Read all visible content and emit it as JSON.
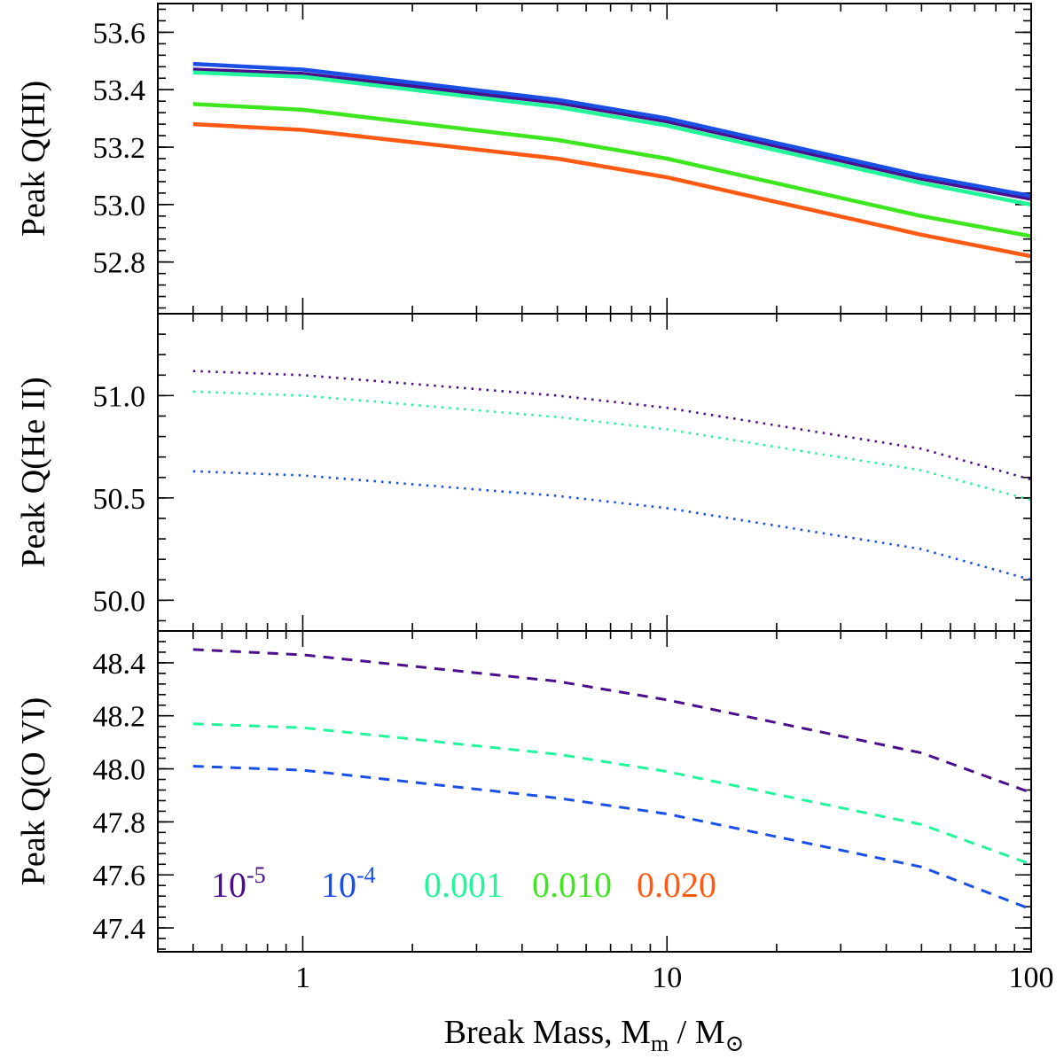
{
  "chart_data": {
    "type": "line",
    "x_scale": "log",
    "xlim": [
      0.4,
      100
    ],
    "x_ticks": [
      1,
      10,
      100
    ],
    "x_tick_labels": [
      "1",
      "10",
      "100"
    ],
    "x_label_main": "Break Mass, M",
    "x_label_sub": "m",
    "x_label_sep": " / M",
    "x_label_sun": "⊙",
    "x": [
      0.5,
      1,
      5,
      10,
      50,
      100
    ],
    "colors": {
      "1e-5": "#4b0f8c",
      "1e-4": "#1a4fe6",
      "0.001": "#22f59a",
      "0.010": "#3ee620",
      "0.020": "#ff5a14"
    },
    "panels": [
      {
        "ylabel": "Peak Q(HI)",
        "ylim": [
          52.62,
          53.7
        ],
        "y_ticks": [
          52.8,
          53.0,
          53.2,
          53.4,
          53.6
        ],
        "y_tick_labels": [
          "52.8",
          "53.0",
          "53.2",
          "53.4",
          "53.6"
        ],
        "y_minor_step": 0.04,
        "line_style": "solid",
        "series": [
          {
            "name": "1e-5",
            "values": [
              53.47,
              53.455,
              53.355,
              53.29,
              53.09,
              53.02
            ]
          },
          {
            "name": "1e-4",
            "values": [
              53.49,
              53.47,
              53.365,
              53.3,
              53.1,
              53.03
            ]
          },
          {
            "name": "0.001",
            "values": [
              53.46,
              53.445,
              53.34,
              53.275,
              53.075,
              53.0
            ]
          },
          {
            "name": "0.010",
            "values": [
              53.35,
              53.33,
              53.225,
              53.16,
              52.96,
              52.89
            ]
          },
          {
            "name": "0.020",
            "values": [
              53.28,
              53.26,
              53.16,
              53.095,
              52.895,
              52.82
            ]
          }
        ]
      },
      {
        "ylabel": "Peak Q(He II)",
        "ylim": [
          49.85,
          51.4
        ],
        "y_ticks": [
          50.0,
          50.5,
          51.0
        ],
        "y_tick_labels": [
          "50.0",
          "50.5",
          "51.0"
        ],
        "y_minor_step": 0.1,
        "line_style": "dotted",
        "series": [
          {
            "name": "1e-5",
            "values": [
              51.12,
              51.1,
              51.0,
              50.94,
              50.74,
              50.59
            ]
          },
          {
            "name": "0.001",
            "values": [
              51.02,
              51.0,
              50.895,
              50.835,
              50.635,
              50.49
            ]
          },
          {
            "name": "1e-4",
            "values": [
              50.63,
              50.61,
              50.51,
              50.45,
              50.25,
              50.1
            ]
          }
        ]
      },
      {
        "ylabel": "Peak Q(O VI)",
        "ylim": [
          47.31,
          48.52
        ],
        "y_ticks": [
          47.4,
          47.6,
          47.8,
          48.0,
          48.2,
          48.4
        ],
        "y_tick_labels": [
          "47.4",
          "47.6",
          "47.8",
          "48.0",
          "48.2",
          "48.4"
        ],
        "y_minor_step": 0.04,
        "line_style": "dashed",
        "series": [
          {
            "name": "1e-5",
            "values": [
              48.45,
              48.43,
              48.33,
              48.26,
              48.06,
              47.91
            ]
          },
          {
            "name": "0.001",
            "values": [
              48.17,
              48.155,
              48.055,
              47.99,
              47.79,
              47.64
            ]
          },
          {
            "name": "1e-4",
            "values": [
              48.01,
              47.995,
              47.89,
              47.83,
              47.63,
              47.47
            ]
          }
        ]
      }
    ],
    "legend": {
      "placement": "bottom-left of lower panel",
      "items": [
        {
          "name": "1e-5",
          "base": "10",
          "exp": "-5"
        },
        {
          "name": "1e-4",
          "base": "10",
          "exp": "-4"
        },
        {
          "name": "0.001",
          "text": "0.001"
        },
        {
          "name": "0.010",
          "text": "0.010"
        },
        {
          "name": "0.020",
          "text": "0.020"
        }
      ]
    }
  }
}
